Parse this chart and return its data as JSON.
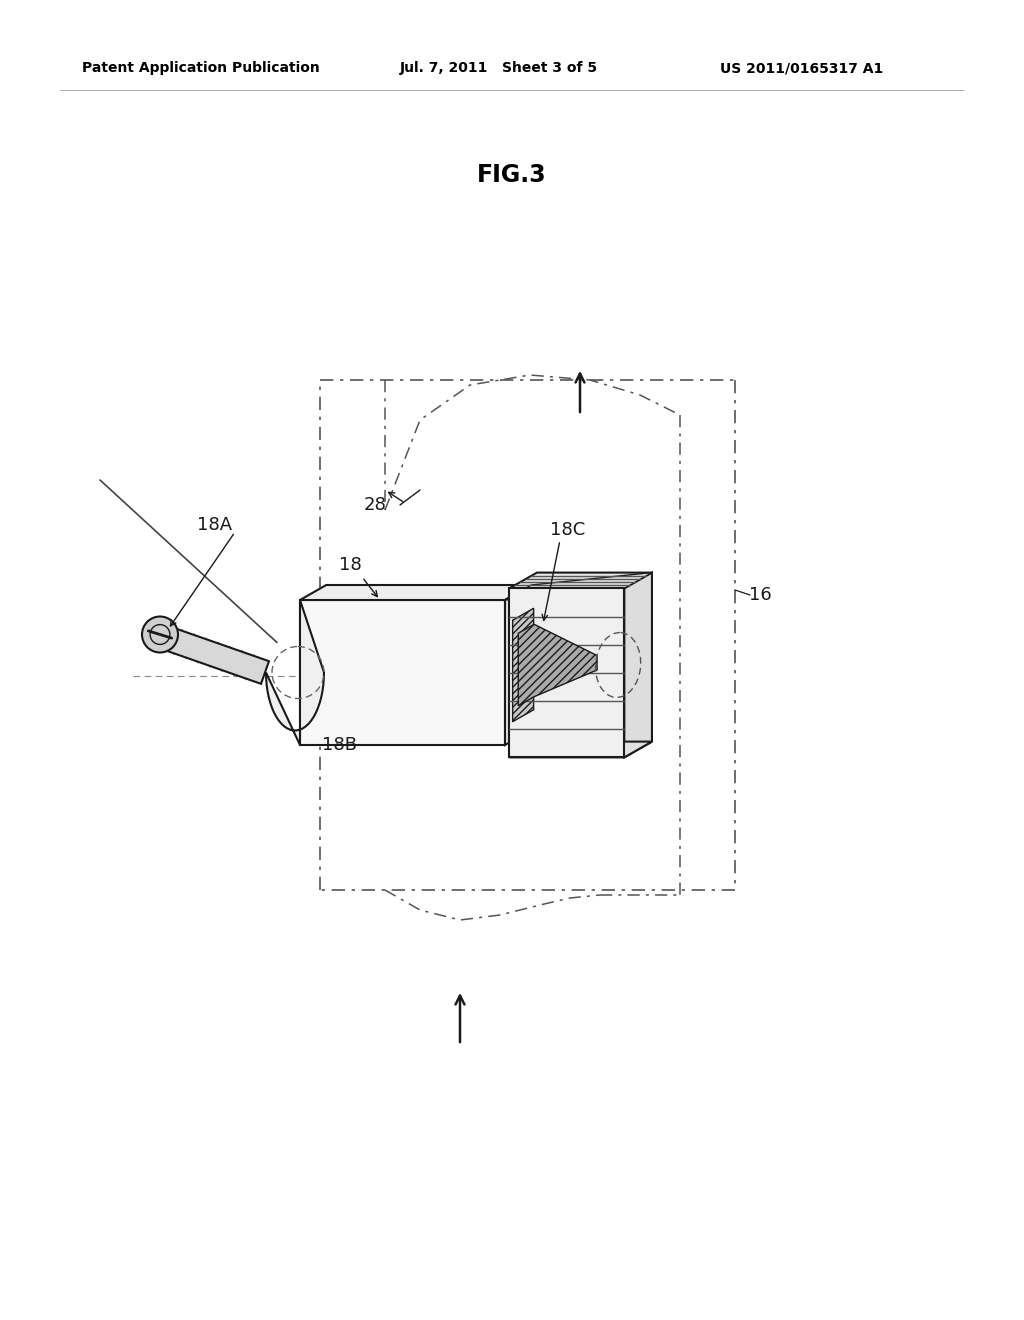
{
  "bg_color": "#ffffff",
  "line_color": "#1a1a1a",
  "header_left": "Patent Application Publication",
  "header_mid": "Jul. 7, 2011   Sheet 3 of 5",
  "header_right": "US 2011/0165317 A1",
  "fig_label": "FIG.3",
  "label_fontsize": 13,
  "header_fontsize": 10,
  "fig_fontsize": 17
}
